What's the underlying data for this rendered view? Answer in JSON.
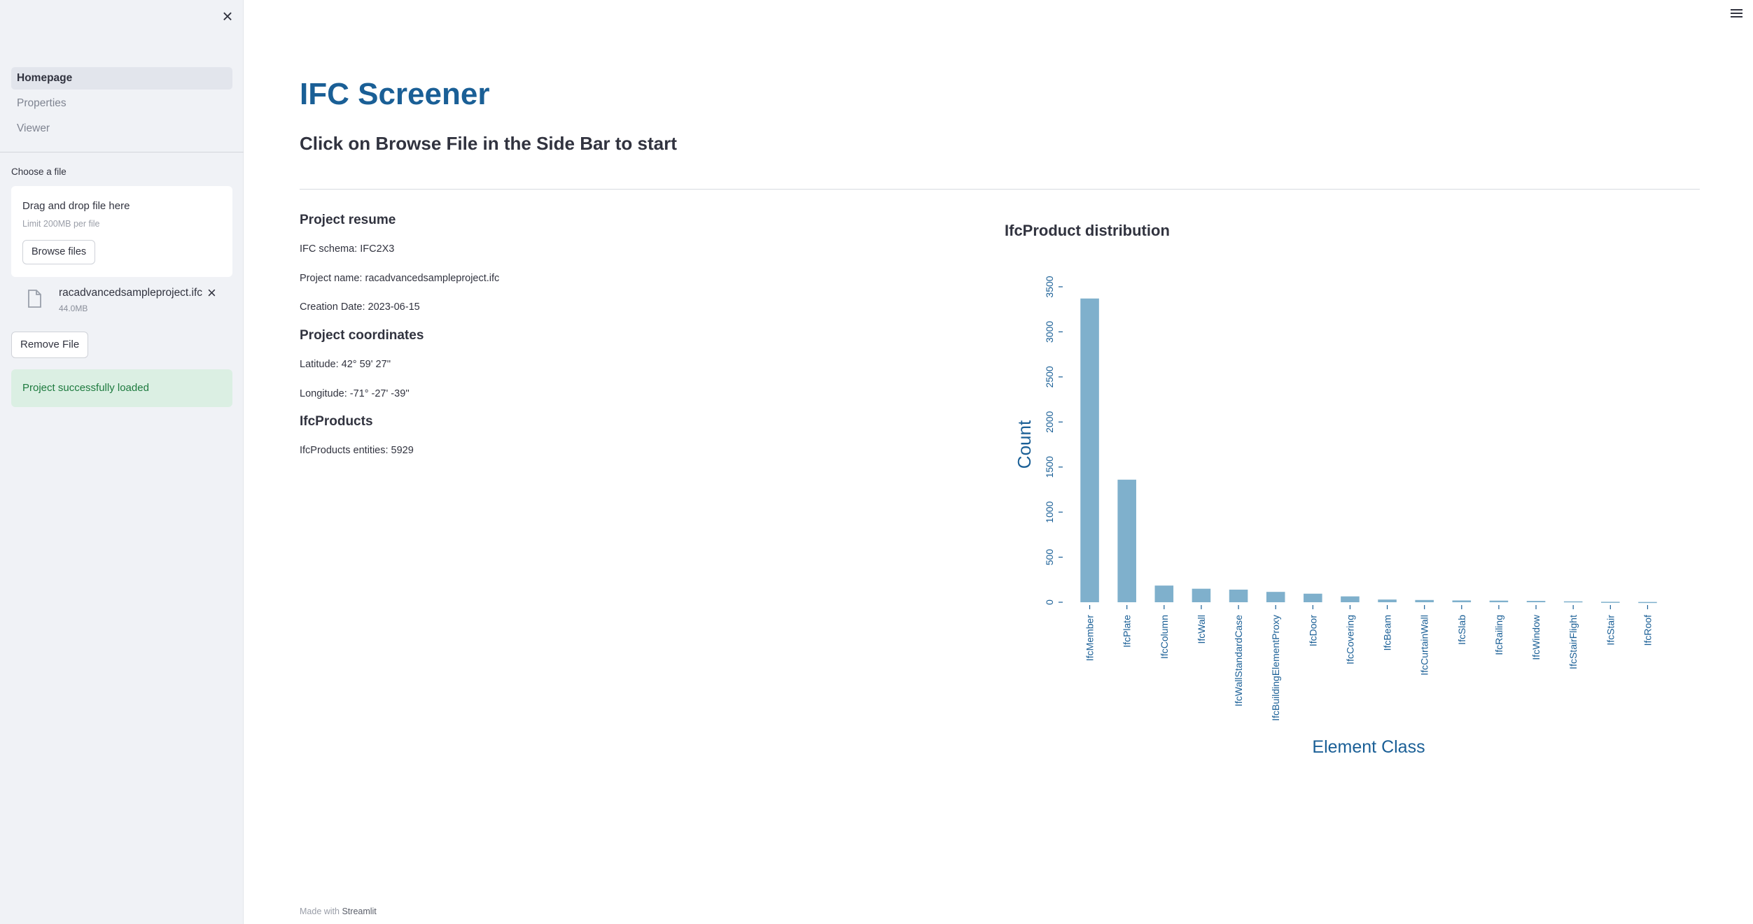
{
  "sidebar": {
    "close_icon": "×",
    "nav": [
      {
        "label": "Homepage",
        "active": true
      },
      {
        "label": "Properties",
        "active": false
      },
      {
        "label": "Viewer",
        "active": false
      }
    ],
    "uploader": {
      "label": "Choose a file",
      "drop_text": "Drag and drop file here",
      "limit_text": "Limit 200MB per file",
      "browse_label": "Browse files"
    },
    "file": {
      "name": "racadvancedsampleproject.ifc",
      "size": "44.0MB",
      "remove_icon": "×"
    },
    "remove_button": "Remove File",
    "success_message": "Project successfully loaded"
  },
  "main": {
    "title": "IFC Screener",
    "subtitle": "Click on Browse File in the Side Bar to start",
    "resume_heading": "Project resume",
    "schema": "IFC schema: IFC2X3",
    "project_name": "Project name: racadvancedsampleproject.ifc",
    "creation_date": "Creation Date: 2023-06-15",
    "coords_heading": "Project coordinates",
    "latitude": "Latitude: 42° 59' 27''",
    "longitude": "Longitude: -71° -27' -39''",
    "products_heading": "IfcProducts",
    "products_count": "IfcProducts entities: 5929",
    "chart_heading": "IfcProduct distribution"
  },
  "footer": {
    "prefix": "Made with",
    "brand": "Streamlit"
  },
  "colors": {
    "title": "#1a5f96",
    "bar": "#7fb0cc",
    "axis": "#1a5f96",
    "success_bg": "#dbefe3",
    "success_text": "#1d7a3e"
  },
  "chart_data": {
    "type": "bar",
    "title": "IfcProduct distribution",
    "xlabel": "Element Class",
    "ylabel": "Count",
    "categories": [
      "IfcMember",
      "IfcPlate",
      "IfcColumn",
      "IfcWall",
      "IfcWallStandardCase",
      "IfcBuildingElementProxy",
      "IfcDoor",
      "IfcCovering",
      "IfcBeam",
      "IfcCurtainWall",
      "IfcSlab",
      "IfcRailing",
      "IfcWindow",
      "IfcStairFlight",
      "IfcStair",
      "IfcRoof"
    ],
    "values": [
      3370,
      1360,
      185,
      150,
      140,
      115,
      95,
      65,
      30,
      25,
      20,
      18,
      15,
      10,
      5,
      3
    ],
    "yticks": [
      0,
      500,
      1000,
      1500,
      2000,
      2500,
      3000,
      3500
    ],
    "ylim": [
      0,
      3500
    ],
    "grid": false
  }
}
